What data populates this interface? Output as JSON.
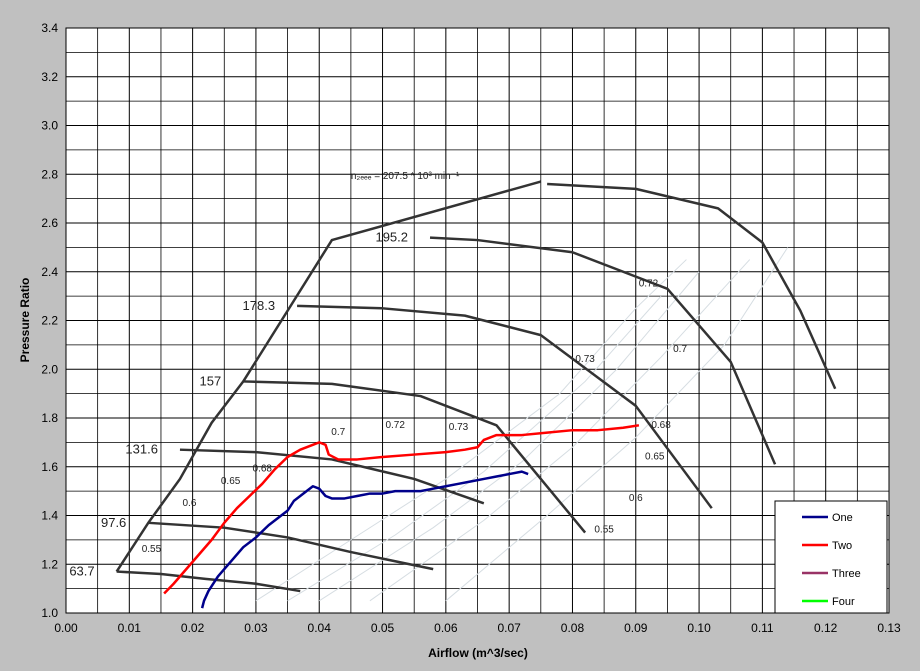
{
  "chart_data": {
    "type": "line",
    "xlabel": "Airflow  (m^3/sec)",
    "ylabel": "Pressure Ratio",
    "xlim": [
      0.0,
      0.13
    ],
    "ylim": [
      1.0,
      3.4
    ],
    "x_ticks": [
      "0.00",
      "0.01",
      "0.02",
      "0.03",
      "0.04",
      "0.05",
      "0.06",
      "0.07",
      "0.08",
      "0.09",
      "0.10",
      "0.11",
      "0.12",
      "0.13"
    ],
    "y_ticks": [
      "1.0",
      "1.2",
      "1.4",
      "1.6",
      "1.8",
      "2.0",
      "2.2",
      "2.4",
      "2.6",
      "2.8",
      "3.0",
      "3.2",
      "3.4"
    ],
    "grid": true,
    "legend_position": "bottom-right",
    "colors": {
      "One": "#00008b",
      "Two": "#ff0000",
      "Three": "#993366",
      "Four": "#00ff00"
    },
    "series": [
      {
        "name": "One",
        "x": [
          0.0215,
          0.0218,
          0.0225,
          0.024,
          0.026,
          0.028,
          0.03,
          0.032,
          0.034,
          0.035,
          0.036,
          0.037,
          0.038,
          0.039,
          0.04,
          0.041,
          0.042,
          0.044,
          0.046,
          0.048,
          0.05,
          0.052,
          0.054,
          0.056,
          0.058,
          0.06,
          0.062,
          0.064,
          0.066,
          0.068,
          0.07,
          0.072,
          0.073
        ],
        "y": [
          1.02,
          1.05,
          1.09,
          1.15,
          1.21,
          1.27,
          1.31,
          1.36,
          1.4,
          1.42,
          1.46,
          1.48,
          1.5,
          1.52,
          1.51,
          1.48,
          1.47,
          1.47,
          1.48,
          1.49,
          1.49,
          1.5,
          1.5,
          1.5,
          1.51,
          1.52,
          1.53,
          1.54,
          1.55,
          1.56,
          1.57,
          1.58,
          1.57
        ]
      },
      {
        "name": "Two",
        "x": [
          0.0155,
          0.017,
          0.019,
          0.021,
          0.023,
          0.025,
          0.027,
          0.029,
          0.031,
          0.033,
          0.035,
          0.037,
          0.039,
          0.04,
          0.041,
          0.0415,
          0.043,
          0.046,
          0.05,
          0.055,
          0.06,
          0.063,
          0.065,
          0.066,
          0.068,
          0.072,
          0.076,
          0.08,
          0.084,
          0.088,
          0.0905
        ],
        "y": [
          1.08,
          1.12,
          1.18,
          1.24,
          1.3,
          1.37,
          1.43,
          1.48,
          1.53,
          1.59,
          1.64,
          1.67,
          1.69,
          1.7,
          1.69,
          1.65,
          1.63,
          1.63,
          1.64,
          1.65,
          1.66,
          1.67,
          1.68,
          1.71,
          1.73,
          1.73,
          1.74,
          1.75,
          1.75,
          1.76,
          1.77
        ]
      },
      {
        "name": "Three",
        "x": [],
        "y": []
      },
      {
        "name": "Four",
        "x": [],
        "y": []
      }
    ],
    "map": {
      "surge_line": {
        "x": [
          0.008,
          0.013,
          0.018,
          0.023,
          0.028,
          0.042,
          0.075
        ],
        "y": [
          1.17,
          1.37,
          1.55,
          1.78,
          1.95,
          2.53,
          2.77
        ]
      },
      "speed_lines": [
        {
          "label": "63.7",
          "x": [
            0.008,
            0.015,
            0.022,
            0.03,
            0.037
          ],
          "y": [
            1.17,
            1.16,
            1.14,
            1.12,
            1.09
          ]
        },
        {
          "label": "97.6",
          "x": [
            0.013,
            0.025,
            0.035,
            0.045,
            0.058
          ],
          "y": [
            1.37,
            1.35,
            1.31,
            1.25,
            1.18
          ]
        },
        {
          "label": "131.6",
          "x": [
            0.018,
            0.03,
            0.042,
            0.055,
            0.066
          ],
          "y": [
            1.67,
            1.66,
            1.63,
            1.55,
            1.45
          ]
        },
        {
          "label": "157",
          "x": [
            0.028,
            0.042,
            0.056,
            0.068,
            0.082
          ],
          "y": [
            1.95,
            1.94,
            1.89,
            1.77,
            1.33
          ]
        },
        {
          "label": "178.3",
          "x": [
            0.0365,
            0.05,
            0.063,
            0.075,
            0.09,
            0.102
          ],
          "y": [
            2.26,
            2.25,
            2.22,
            2.14,
            1.85,
            1.43
          ]
        },
        {
          "label": "195.2",
          "x": [
            0.0575,
            0.065,
            0.08,
            0.095,
            0.105,
            0.112
          ],
          "y": [
            2.54,
            2.53,
            2.48,
            2.33,
            2.03,
            1.61
          ]
        },
        {
          "label": "",
          "x": [
            0.076,
            0.09,
            0.103,
            0.11,
            0.116,
            0.1215
          ],
          "y": [
            2.76,
            2.74,
            2.66,
            2.52,
            2.24,
            1.92
          ]
        }
      ],
      "speed_title": "n₂ₑₑₑ = 207.5 * 10³ min⁻¹",
      "efficiency_labels": [
        {
          "text": "0.55",
          "x": 0.0135,
          "y": 1.25
        },
        {
          "text": "0.6",
          "x": 0.0195,
          "y": 1.44
        },
        {
          "text": "0.65",
          "x": 0.026,
          "y": 1.53
        },
        {
          "text": "0.68",
          "x": 0.031,
          "y": 1.58
        },
        {
          "text": "0.7",
          "x": 0.043,
          "y": 1.73
        },
        {
          "text": "0.72",
          "x": 0.052,
          "y": 1.76
        },
        {
          "text": "0.73",
          "x": 0.062,
          "y": 1.75
        },
        {
          "text": "0.73",
          "x": 0.082,
          "y": 2.03
        },
        {
          "text": "0.72",
          "x": 0.092,
          "y": 2.34
        },
        {
          "text": "0.7",
          "x": 0.097,
          "y": 2.07
        },
        {
          "text": "0.68",
          "x": 0.094,
          "y": 1.76
        },
        {
          "text": "0.65",
          "x": 0.093,
          "y": 1.63
        },
        {
          "text": "0.6",
          "x": 0.09,
          "y": 1.46
        },
        {
          "text": "0.55",
          "x": 0.085,
          "y": 1.33
        }
      ]
    }
  }
}
